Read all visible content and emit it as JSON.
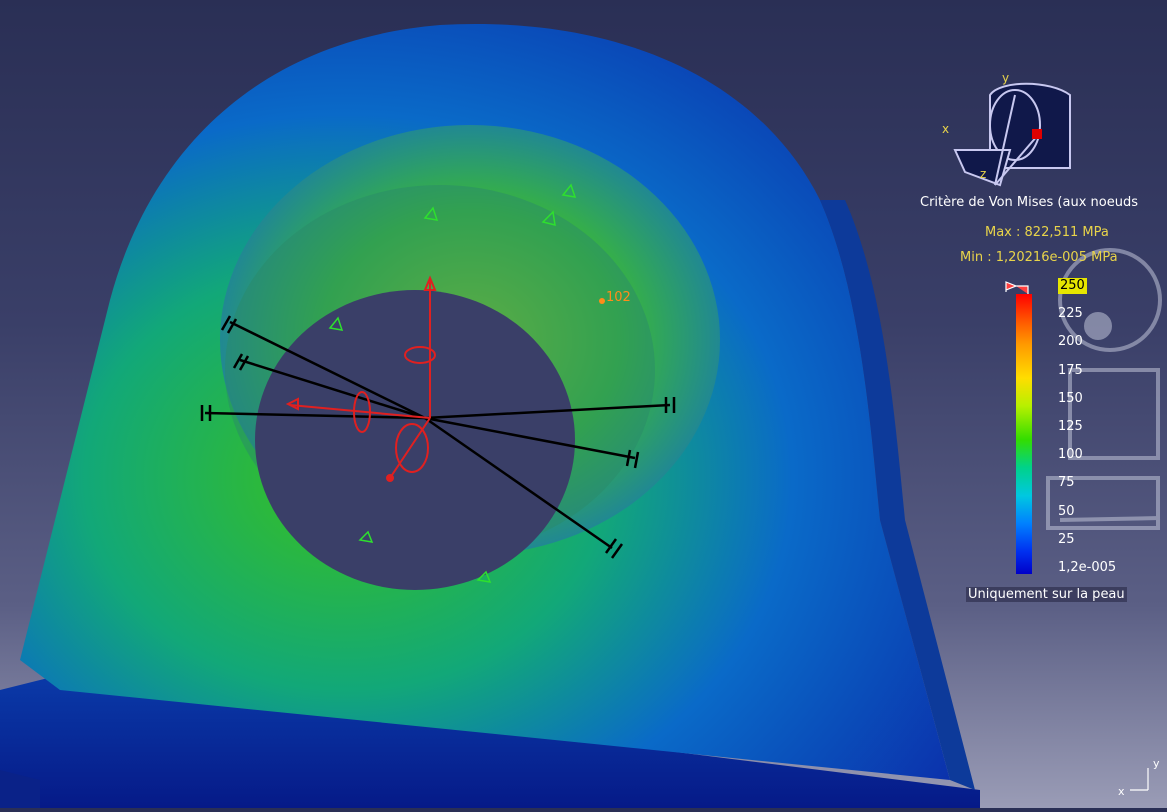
{
  "legend": {
    "title": "Critère de Von Mises (aux noeuds",
    "max": "Max : 822,511 MPa",
    "min": "Min : 1,20216e-005 MPa",
    "scale": [
      "250",
      "225",
      "200",
      "175",
      "150",
      "125",
      "100",
      "75",
      "50",
      "25",
      "1,2e-005"
    ],
    "note": "Uniquement sur la peau"
  },
  "annotation": {
    "value": "102"
  },
  "compass": {
    "x": "x",
    "y": "y",
    "z": "z"
  },
  "corner_axes": {
    "x": "x",
    "y": "y"
  },
  "colors": {
    "accent_label": "#e8d44a",
    "annotation": "#ff8c1a",
    "restraint": "#000000",
    "load": "#e02020"
  }
}
